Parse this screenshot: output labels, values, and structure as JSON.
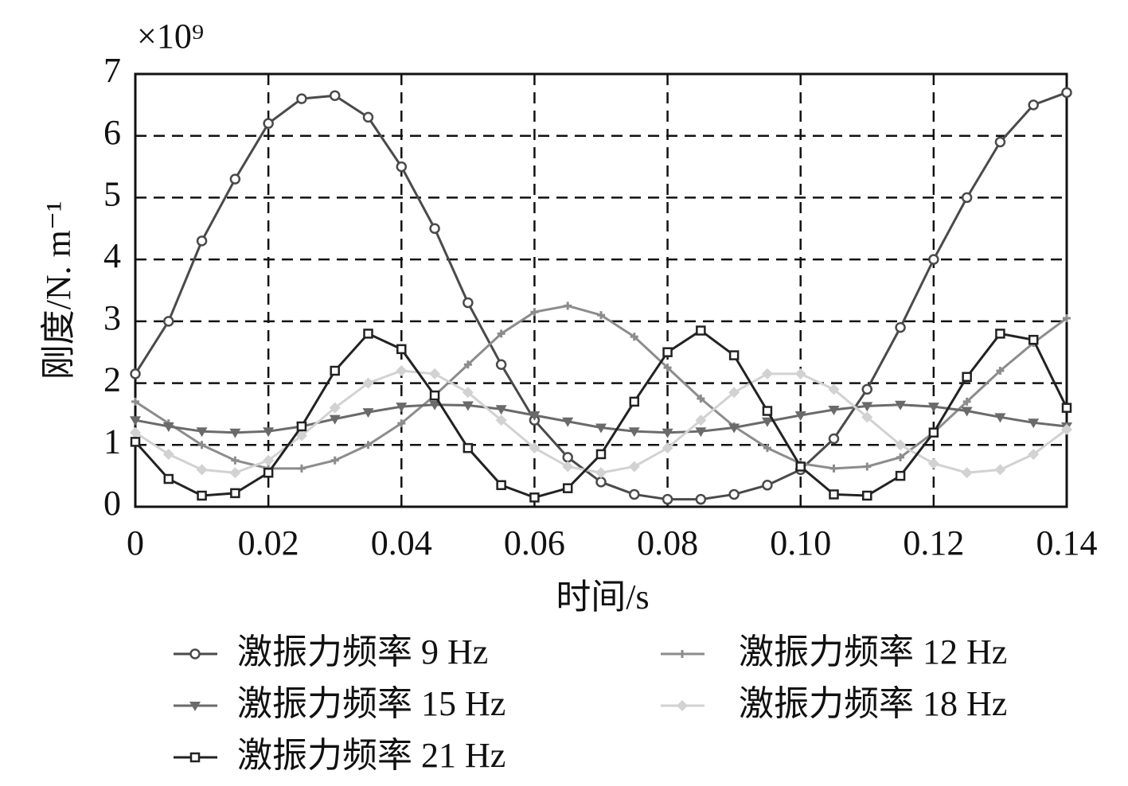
{
  "chart_data": {
    "type": "line",
    "y_scale_label": "×10⁹",
    "x_label": "时间/s",
    "y_label": "刚度/N. m⁻¹",
    "x": [
      0,
      0.005,
      0.01,
      0.015,
      0.02,
      0.025,
      0.03,
      0.035,
      0.04,
      0.045,
      0.05,
      0.055,
      0.06,
      0.065,
      0.07,
      0.075,
      0.08,
      0.085,
      0.09,
      0.095,
      0.1,
      0.105,
      0.11,
      0.115,
      0.12,
      0.125,
      0.13,
      0.135,
      0.14
    ],
    "series": [
      {
        "name": "激振力频率 9 Hz",
        "color": "#4a4a4a",
        "marker": "circle",
        "values": [
          2.15,
          3.0,
          4.3,
          5.3,
          6.2,
          6.6,
          6.65,
          6.3,
          5.5,
          4.5,
          3.3,
          2.3,
          1.4,
          0.8,
          0.4,
          0.2,
          0.12,
          0.12,
          0.2,
          0.35,
          0.6,
          1.1,
          1.9,
          2.9,
          4.0,
          5.0,
          5.9,
          6.5,
          6.7
        ]
      },
      {
        "name": "激振力频率 12 Hz",
        "color": "#8c8c8c",
        "marker": "plus",
        "values": [
          1.7,
          1.35,
          1.0,
          0.75,
          0.62,
          0.62,
          0.75,
          1.0,
          1.35,
          1.8,
          2.3,
          2.8,
          3.15,
          3.25,
          3.1,
          2.75,
          2.25,
          1.75,
          1.3,
          0.95,
          0.7,
          0.62,
          0.65,
          0.8,
          1.2,
          1.7,
          2.2,
          2.65,
          3.05
        ]
      },
      {
        "name": "激振力频率 15 Hz",
        "color": "#6a6a6a",
        "marker": "triangle-down",
        "values": [
          1.4,
          1.3,
          1.22,
          1.2,
          1.22,
          1.3,
          1.42,
          1.53,
          1.62,
          1.65,
          1.64,
          1.58,
          1.48,
          1.38,
          1.28,
          1.22,
          1.2,
          1.22,
          1.28,
          1.38,
          1.48,
          1.57,
          1.63,
          1.65,
          1.62,
          1.55,
          1.45,
          1.36,
          1.3
        ]
      },
      {
        "name": "激振力频率 18 Hz",
        "color": "#d2d2d2",
        "marker": "diamond",
        "values": [
          1.2,
          0.85,
          0.6,
          0.55,
          0.75,
          1.15,
          1.6,
          2.0,
          2.2,
          2.15,
          1.85,
          1.4,
          0.95,
          0.65,
          0.55,
          0.65,
          0.95,
          1.4,
          1.85,
          2.15,
          2.15,
          1.9,
          1.45,
          1.0,
          0.7,
          0.55,
          0.6,
          0.85,
          1.25
        ]
      },
      {
        "name": "激振力频率 21 Hz",
        "color": "#222222",
        "marker": "square",
        "values": [
          1.05,
          0.45,
          0.18,
          0.22,
          0.55,
          1.3,
          2.2,
          2.8,
          2.55,
          1.8,
          0.95,
          0.35,
          0.15,
          0.3,
          0.85,
          1.7,
          2.5,
          2.85,
          2.45,
          1.55,
          0.65,
          0.2,
          0.18,
          0.5,
          1.2,
          2.1,
          2.8,
          2.7,
          1.6
        ]
      }
    ],
    "xlim": [
      0,
      0.14
    ],
    "ylim": [
      0,
      7
    ],
    "xticks": [
      0,
      0.02,
      0.04,
      0.06,
      0.08,
      {
        "value": 0.1,
        "label": "0.10"
      },
      0.12,
      0.14
    ],
    "yticks": [
      0,
      1,
      2,
      3,
      4,
      5,
      6,
      7
    ],
    "grid": true
  }
}
